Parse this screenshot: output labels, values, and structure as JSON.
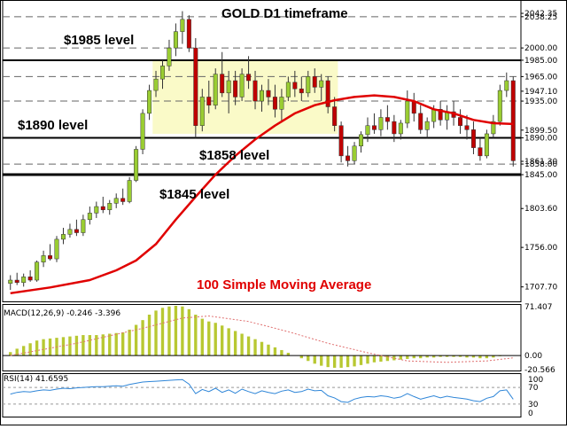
{
  "chart_data": [
    {
      "type": "candlestick",
      "title": "GOLD D1 timeframe",
      "price_axis_labels": [
        "2042.35",
        "2038.25",
        "2000.00",
        "1985.00",
        "1965.00",
        "1947.10",
        "1935.00",
        "1899.50",
        "1890.00",
        "1861.30",
        "1858.00",
        "1845.00",
        "1803.60",
        "1756.00",
        "1707.70"
      ],
      "ylim": [
        1690,
        2050
      ],
      "levels": [
        {
          "label": "$1985 level",
          "value": 1985,
          "style": "solid"
        },
        {
          "label": "$1890 level",
          "value": 1890,
          "style": "solid"
        },
        {
          "label": "$1858 level",
          "value": 1858,
          "style": "dashed"
        },
        {
          "label": "$1845 level",
          "value": 1845,
          "style": "solid-thick"
        }
      ],
      "dashed_levels": [
        2038.25,
        2000,
        1965,
        1935,
        1858
      ],
      "range_box": {
        "start_bar": 22,
        "end_bar": 50,
        "top": 1985,
        "bottom": 1895
      },
      "sma_label": "100 Simple Moving Average",
      "colors": {
        "bull": "#9acd32",
        "bear": "#c00000",
        "sma": "#e00000",
        "zone": "#fafac8"
      },
      "candles": [
        [
          1712,
          1722,
          1704,
          1716
        ],
        [
          1716,
          1725,
          1710,
          1713
        ],
        [
          1713,
          1724,
          1708,
          1720
        ],
        [
          1720,
          1728,
          1714,
          1716
        ],
        [
          1716,
          1740,
          1714,
          1738
        ],
        [
          1738,
          1752,
          1732,
          1746
        ],
        [
          1746,
          1760,
          1740,
          1742
        ],
        [
          1742,
          1770,
          1738,
          1766
        ],
        [
          1766,
          1780,
          1760,
          1772
        ],
        [
          1772,
          1785,
          1768,
          1778
        ],
        [
          1778,
          1790,
          1770,
          1774
        ],
        [
          1774,
          1796,
          1770,
          1790
        ],
        [
          1790,
          1806,
          1784,
          1798
        ],
        [
          1798,
          1812,
          1792,
          1806
        ],
        [
          1806,
          1818,
          1798,
          1802
        ],
        [
          1802,
          1814,
          1796,
          1810
        ],
        [
          1810,
          1822,
          1804,
          1816
        ],
        [
          1816,
          1828,
          1808,
          1812
        ],
        [
          1812,
          1842,
          1810,
          1838
        ],
        [
          1838,
          1880,
          1836,
          1876
        ],
        [
          1876,
          1925,
          1870,
          1920
        ],
        [
          1920,
          1955,
          1912,
          1948
        ],
        [
          1948,
          1972,
          1940,
          1962
        ],
        [
          1962,
          1985,
          1950,
          1978
        ],
        [
          1978,
          2010,
          1972,
          2000
        ],
        [
          2000,
          2030,
          1990,
          2020
        ],
        [
          2020,
          2045,
          2005,
          2035
        ],
        [
          2035,
          2040,
          1995,
          2000
        ],
        [
          2000,
          2012,
          1890,
          1905
        ],
        [
          1905,
          1950,
          1898,
          1940
        ],
        [
          1940,
          1960,
          1920,
          1930
        ],
        [
          1930,
          1975,
          1925,
          1968
        ],
        [
          1968,
          1995,
          1940,
          1945
        ],
        [
          1945,
          1972,
          1920,
          1960
        ],
        [
          1960,
          1972,
          1930,
          1940
        ],
        [
          1940,
          1975,
          1935,
          1968
        ],
        [
          1968,
          1990,
          1950,
          1960
        ],
        [
          1960,
          1972,
          1925,
          1935
        ],
        [
          1935,
          1955,
          1922,
          1948
        ],
        [
          1948,
          1962,
          1930,
          1940
        ],
        [
          1940,
          1955,
          1915,
          1925
        ],
        [
          1925,
          1950,
          1910,
          1940
        ],
        [
          1940,
          1965,
          1935,
          1958
        ],
        [
          1958,
          1972,
          1940,
          1950
        ],
        [
          1950,
          1965,
          1935,
          1945
        ],
        [
          1945,
          1972,
          1940,
          1965
        ],
        [
          1965,
          1975,
          1945,
          1952
        ],
        [
          1952,
          1968,
          1935,
          1960
        ],
        [
          1960,
          1965,
          1920,
          1928
        ],
        [
          1928,
          1940,
          1898,
          1905
        ],
        [
          1905,
          1910,
          1860,
          1868
        ],
        [
          1868,
          1880,
          1855,
          1862
        ],
        [
          1862,
          1885,
          1858,
          1880
        ],
        [
          1880,
          1898,
          1872,
          1894
        ],
        [
          1894,
          1915,
          1885,
          1905
        ],
        [
          1905,
          1920,
          1895,
          1900
        ],
        [
          1900,
          1925,
          1892,
          1915
        ],
        [
          1915,
          1930,
          1900,
          1910
        ],
        [
          1910,
          1918,
          1885,
          1895
        ],
        [
          1895,
          1912,
          1888,
          1908
        ],
        [
          1908,
          1948,
          1902,
          1935
        ],
        [
          1935,
          1945,
          1910,
          1920
        ],
        [
          1920,
          1930,
          1895,
          1900
        ],
        [
          1900,
          1915,
          1890,
          1910
        ],
        [
          1910,
          1930,
          1902,
          1925
        ],
        [
          1925,
          1935,
          1905,
          1912
        ],
        [
          1912,
          1930,
          1900,
          1922
        ],
        [
          1922,
          1935,
          1905,
          1915
        ],
        [
          1915,
          1925,
          1895,
          1905
        ],
        [
          1905,
          1918,
          1888,
          1900
        ],
        [
          1900,
          1910,
          1870,
          1878
        ],
        [
          1878,
          1890,
          1862,
          1868
        ],
        [
          1868,
          1900,
          1865,
          1895
        ],
        [
          1895,
          1918,
          1890,
          1910
        ],
        [
          1910,
          1955,
          1905,
          1948
        ],
        [
          1948,
          1970,
          1940,
          1960
        ],
        [
          1960,
          1965,
          1855,
          1862
        ]
      ],
      "sma": [
        [
          0,
          1700
        ],
        [
          6,
          1707
        ],
        [
          12,
          1716
        ],
        [
          16,
          1728
        ],
        [
          19,
          1740
        ],
        [
          22,
          1760
        ],
        [
          25,
          1790
        ],
        [
          28,
          1818
        ],
        [
          31,
          1845
        ],
        [
          34,
          1868
        ],
        [
          37,
          1888
        ],
        [
          40,
          1905
        ],
        [
          43,
          1920
        ],
        [
          46,
          1930
        ],
        [
          49,
          1936
        ],
        [
          52,
          1940
        ],
        [
          55,
          1942
        ],
        [
          58,
          1940
        ],
        [
          61,
          1935
        ],
        [
          64,
          1925
        ],
        [
          67,
          1920
        ],
        [
          70,
          1912
        ],
        [
          73,
          1908
        ],
        [
          76,
          1907
        ]
      ]
    },
    {
      "type": "bar",
      "label": "MACD(12,26,9) -0.246 -3.396",
      "axis_labels": [
        "71.407",
        "0.00",
        "-20.566"
      ],
      "ylim": [
        -22,
        73
      ],
      "colors": {
        "bar": "#b8c832",
        "signal": "#e07070"
      },
      "values": [
        5,
        10,
        14,
        18,
        22,
        24,
        25,
        26,
        27,
        28,
        29,
        30,
        30,
        30,
        31,
        32,
        33,
        34,
        38,
        45,
        52,
        60,
        66,
        70,
        72,
        73,
        72,
        68,
        60,
        54,
        50,
        48,
        44,
        40,
        36,
        32,
        28,
        24,
        20,
        16,
        12,
        8,
        4,
        0,
        -4,
        -8,
        -12,
        -15,
        -17,
        -18,
        -18,
        -17,
        -16,
        -14,
        -12,
        -10,
        -9,
        -8,
        -7,
        -6,
        -5,
        -4,
        -4,
        -3,
        -3,
        -2,
        -2,
        -2,
        -2,
        -3,
        -3,
        -4,
        -4,
        -3,
        -1,
        0,
        -0.2
      ],
      "signal": [
        [
          0,
          0
        ],
        [
          10,
          18
        ],
        [
          20,
          40
        ],
        [
          26,
          55
        ],
        [
          30,
          58
        ],
        [
          36,
          50
        ],
        [
          42,
          35
        ],
        [
          48,
          18
        ],
        [
          54,
          4
        ],
        [
          60,
          -8
        ],
        [
          66,
          -10
        ],
        [
          72,
          -8
        ],
        [
          76,
          -3.4
        ]
      ]
    },
    {
      "type": "line",
      "label": "RSI(14) 41.6595",
      "axis_labels": [
        "100",
        "70",
        "30",
        "0"
      ],
      "ylim": [
        0,
        100
      ],
      "levels": [
        70,
        30
      ],
      "color": "#2f86d8",
      "values": [
        54,
        58,
        60,
        59,
        62,
        64,
        63,
        66,
        68,
        67,
        69,
        70,
        71,
        72,
        72,
        73,
        74,
        73,
        77,
        80,
        83,
        84,
        85,
        86,
        87,
        88,
        89,
        78,
        55,
        65,
        60,
        68,
        58,
        64,
        56,
        66,
        60,
        55,
        62,
        58,
        55,
        61,
        64,
        58,
        60,
        66,
        62,
        63,
        50,
        45,
        36,
        34,
        42,
        46,
        48,
        47,
        50,
        48,
        44,
        47,
        55,
        48,
        42,
        46,
        50,
        45,
        49,
        46,
        44,
        42,
        38,
        36,
        44,
        48,
        62,
        64,
        41.66
      ]
    }
  ]
}
